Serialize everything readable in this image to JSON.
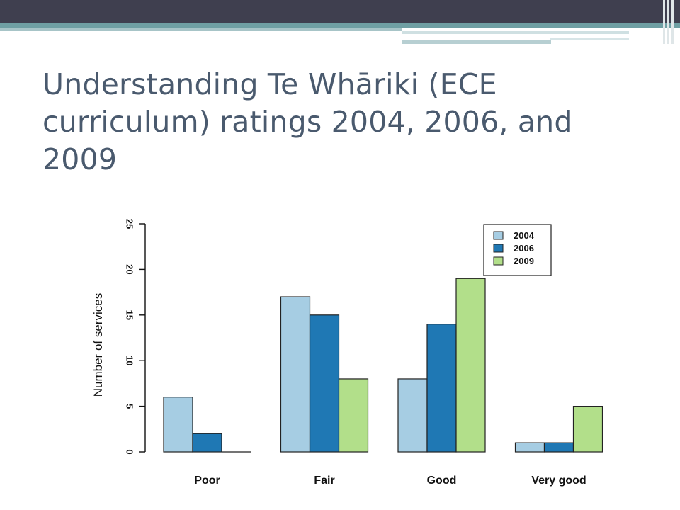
{
  "slide": {
    "title": "Understanding Te Whāriki (ECE curriculum) ratings 2004, 2006, and 2009",
    "colors": {
      "topbar": "#3f3f4f",
      "accent": "#6f9fa3",
      "title_text": "#4a5a6e"
    }
  },
  "chart_data": {
    "type": "bar",
    "categories": [
      "Poor",
      "Fair",
      "Good",
      "Very good"
    ],
    "series": [
      {
        "name": "2004",
        "color": "#a6cde3",
        "values": [
          6,
          17,
          8,
          1
        ]
      },
      {
        "name": "2006",
        "color": "#1f78b4",
        "values": [
          2,
          15,
          14,
          1
        ]
      },
      {
        "name": "2009",
        "color": "#b2df8a",
        "values": [
          0,
          8,
          19,
          5
        ]
      }
    ],
    "ylabel": "Number of services",
    "xlabel": "",
    "ylim": [
      0,
      25
    ],
    "yticks": [
      0,
      5,
      10,
      15,
      20,
      25
    ],
    "legend": "top-right",
    "grid": false
  }
}
